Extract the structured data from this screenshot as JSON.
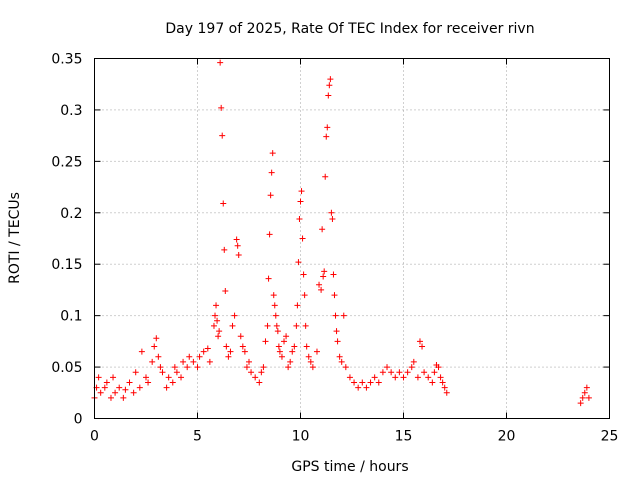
{
  "chart_data": {
    "type": "scatter",
    "title": "Day 197 of 2025, Rate Of TEC Index for receiver rivn",
    "xlabel": "GPS time / hours",
    "ylabel": "ROTI / TECUs",
    "xlim": [
      0,
      25
    ],
    "ylim": [
      0,
      0.35
    ],
    "xticks": [
      "0",
      "5",
      "10",
      "15",
      "20",
      "25"
    ],
    "yticks": [
      "0",
      "0.05",
      "0.1",
      "0.15",
      "0.2",
      "0.25",
      "0.3",
      "0.35"
    ],
    "grid": true,
    "marker": "+",
    "color": "#ff0000",
    "series": [
      {
        "name": "ROTI",
        "points": [
          [
            0.0,
            0.02
          ],
          [
            0.1,
            0.03
          ],
          [
            0.2,
            0.04
          ],
          [
            0.3,
            0.025
          ],
          [
            0.5,
            0.03
          ],
          [
            0.6,
            0.035
          ],
          [
            0.8,
            0.02
          ],
          [
            0.9,
            0.04
          ],
          [
            1.0,
            0.025
          ],
          [
            1.2,
            0.03
          ],
          [
            1.4,
            0.02
          ],
          [
            1.5,
            0.028
          ],
          [
            1.7,
            0.035
          ],
          [
            1.9,
            0.025
          ],
          [
            2.0,
            0.045
          ],
          [
            2.2,
            0.03
          ],
          [
            2.3,
            0.065
          ],
          [
            2.5,
            0.04
          ],
          [
            2.6,
            0.035
          ],
          [
            2.8,
            0.055
          ],
          [
            2.9,
            0.07
          ],
          [
            3.0,
            0.078
          ],
          [
            3.1,
            0.06
          ],
          [
            3.2,
            0.05
          ],
          [
            3.3,
            0.045
          ],
          [
            3.5,
            0.03
          ],
          [
            3.6,
            0.04
          ],
          [
            3.8,
            0.035
          ],
          [
            3.9,
            0.05
          ],
          [
            4.0,
            0.045
          ],
          [
            4.2,
            0.04
          ],
          [
            4.3,
            0.055
          ],
          [
            4.5,
            0.05
          ],
          [
            4.6,
            0.06
          ],
          [
            4.8,
            0.055
          ],
          [
            5.0,
            0.05
          ],
          [
            5.1,
            0.06
          ],
          [
            5.3,
            0.065
          ],
          [
            5.5,
            0.068
          ],
          [
            5.6,
            0.055
          ],
          [
            5.8,
            0.09
          ],
          [
            5.85,
            0.1
          ],
          [
            5.9,
            0.11
          ],
          [
            5.95,
            0.095
          ],
          [
            6.0,
            0.08
          ],
          [
            6.05,
            0.085
          ],
          [
            6.1,
            0.346
          ],
          [
            6.15,
            0.302
          ],
          [
            6.2,
            0.275
          ],
          [
            6.25,
            0.209
          ],
          [
            6.3,
            0.164
          ],
          [
            6.35,
            0.124
          ],
          [
            6.4,
            0.07
          ],
          [
            6.5,
            0.06
          ],
          [
            6.6,
            0.065
          ],
          [
            6.7,
            0.09
          ],
          [
            6.8,
            0.1
          ],
          [
            6.9,
            0.174
          ],
          [
            6.95,
            0.168
          ],
          [
            7.0,
            0.159
          ],
          [
            7.1,
            0.08
          ],
          [
            7.2,
            0.07
          ],
          [
            7.3,
            0.065
          ],
          [
            7.4,
            0.05
          ],
          [
            7.5,
            0.055
          ],
          [
            7.6,
            0.045
          ],
          [
            7.8,
            0.04
          ],
          [
            8.0,
            0.035
          ],
          [
            8.1,
            0.045
          ],
          [
            8.2,
            0.05
          ],
          [
            8.3,
            0.075
          ],
          [
            8.4,
            0.09
          ],
          [
            8.45,
            0.136
          ],
          [
            8.5,
            0.179
          ],
          [
            8.55,
            0.217
          ],
          [
            8.6,
            0.239
          ],
          [
            8.65,
            0.258
          ],
          [
            8.7,
            0.12
          ],
          [
            8.75,
            0.11
          ],
          [
            8.8,
            0.1
          ],
          [
            8.85,
            0.09
          ],
          [
            8.9,
            0.085
          ],
          [
            8.95,
            0.07
          ],
          [
            9.0,
            0.065
          ],
          [
            9.1,
            0.06
          ],
          [
            9.2,
            0.075
          ],
          [
            9.3,
            0.08
          ],
          [
            9.4,
            0.05
          ],
          [
            9.5,
            0.055
          ],
          [
            9.6,
            0.065
          ],
          [
            9.7,
            0.07
          ],
          [
            9.8,
            0.09
          ],
          [
            9.85,
            0.11
          ],
          [
            9.9,
            0.152
          ],
          [
            9.95,
            0.194
          ],
          [
            10.0,
            0.211
          ],
          [
            10.05,
            0.221
          ],
          [
            10.1,
            0.175
          ],
          [
            10.15,
            0.14
          ],
          [
            10.2,
            0.12
          ],
          [
            10.25,
            0.09
          ],
          [
            10.3,
            0.07
          ],
          [
            10.4,
            0.06
          ],
          [
            10.5,
            0.055
          ],
          [
            10.6,
            0.05
          ],
          [
            10.8,
            0.065
          ],
          [
            10.9,
            0.13
          ],
          [
            11.0,
            0.125
          ],
          [
            11.05,
            0.184
          ],
          [
            11.1,
            0.138
          ],
          [
            11.15,
            0.143
          ],
          [
            11.2,
            0.235
          ],
          [
            11.25,
            0.274
          ],
          [
            11.3,
            0.283
          ],
          [
            11.35,
            0.314
          ],
          [
            11.4,
            0.324
          ],
          [
            11.45,
            0.33
          ],
          [
            11.5,
            0.2
          ],
          [
            11.55,
            0.194
          ],
          [
            11.6,
            0.14
          ],
          [
            11.65,
            0.12
          ],
          [
            11.7,
            0.1
          ],
          [
            11.75,
            0.085
          ],
          [
            11.8,
            0.075
          ],
          [
            11.9,
            0.06
          ],
          [
            12.0,
            0.055
          ],
          [
            12.1,
            0.1
          ],
          [
            12.2,
            0.05
          ],
          [
            12.4,
            0.04
          ],
          [
            12.6,
            0.035
          ],
          [
            12.8,
            0.03
          ],
          [
            13.0,
            0.035
          ],
          [
            13.2,
            0.03
          ],
          [
            13.4,
            0.035
          ],
          [
            13.6,
            0.04
          ],
          [
            13.8,
            0.035
          ],
          [
            14.0,
            0.045
          ],
          [
            14.2,
            0.05
          ],
          [
            14.4,
            0.045
          ],
          [
            14.6,
            0.04
          ],
          [
            14.8,
            0.045
          ],
          [
            15.0,
            0.04
          ],
          [
            15.2,
            0.045
          ],
          [
            15.4,
            0.05
          ],
          [
            15.5,
            0.055
          ],
          [
            15.7,
            0.04
          ],
          [
            15.8,
            0.075
          ],
          [
            15.9,
            0.07
          ],
          [
            16.0,
            0.045
          ],
          [
            16.2,
            0.04
          ],
          [
            16.4,
            0.035
          ],
          [
            16.5,
            0.045
          ],
          [
            16.6,
            0.052
          ],
          [
            16.7,
            0.05
          ],
          [
            16.8,
            0.04
          ],
          [
            16.9,
            0.035
          ],
          [
            17.0,
            0.03
          ],
          [
            17.1,
            0.025
          ],
          [
            23.6,
            0.015
          ],
          [
            23.7,
            0.02
          ],
          [
            23.8,
            0.025
          ],
          [
            23.9,
            0.03
          ],
          [
            24.0,
            0.02
          ]
        ]
      }
    ]
  }
}
